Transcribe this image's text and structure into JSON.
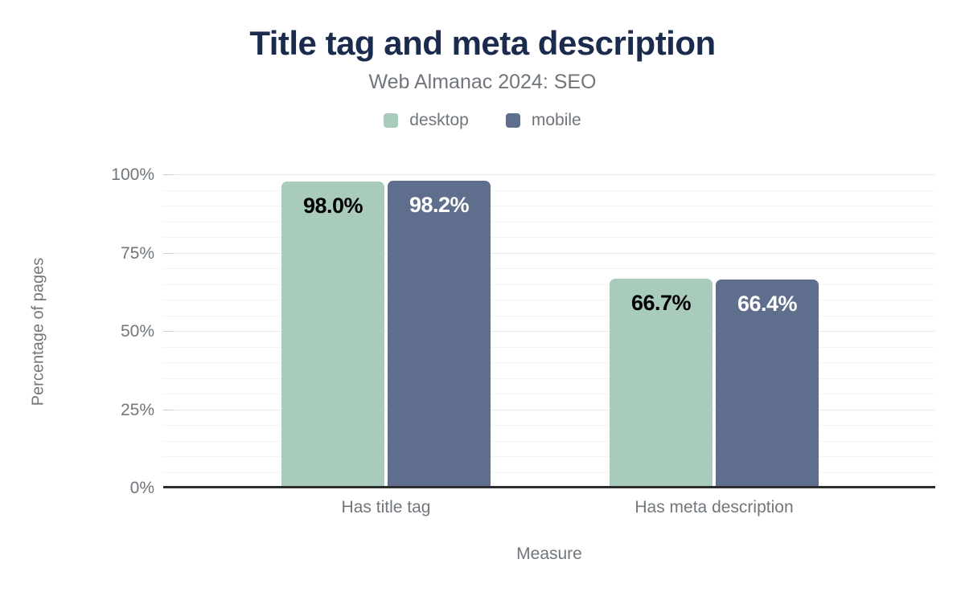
{
  "chart_data": {
    "type": "bar",
    "title": "Title tag and meta description",
    "subtitle": "Web Almanac 2024: SEO",
    "xlabel": "Measure",
    "ylabel": "Percentage of pages",
    "categories": [
      "Has title tag",
      "Has meta description"
    ],
    "series": [
      {
        "name": "desktop",
        "color": "#a9cbbb",
        "value_label_color": "#000000",
        "values": [
          98.0,
          66.7
        ],
        "value_labels": [
          "98.0%",
          "66.7%"
        ]
      },
      {
        "name": "mobile",
        "color": "#5f6e8c",
        "value_label_color": "#ffffff",
        "values": [
          98.2,
          66.4
        ],
        "value_labels": [
          "98.2%",
          "66.4%"
        ]
      }
    ],
    "ylim": [
      0,
      100
    ],
    "y_major_ticks": [
      0,
      25,
      50,
      75,
      100
    ],
    "y_tick_labels": [
      "0%",
      "25%",
      "50%",
      "75%",
      "100%"
    ],
    "y_minor_step": 5,
    "grid": "horizontal-on",
    "legend_position": "top",
    "colors": {
      "title": "#1b2b4e",
      "axis_text": "#70767b",
      "axis_line": "#2e2e2e",
      "grid_minor": "#f4f4f4",
      "grid_major": "#ebebeb"
    }
  }
}
